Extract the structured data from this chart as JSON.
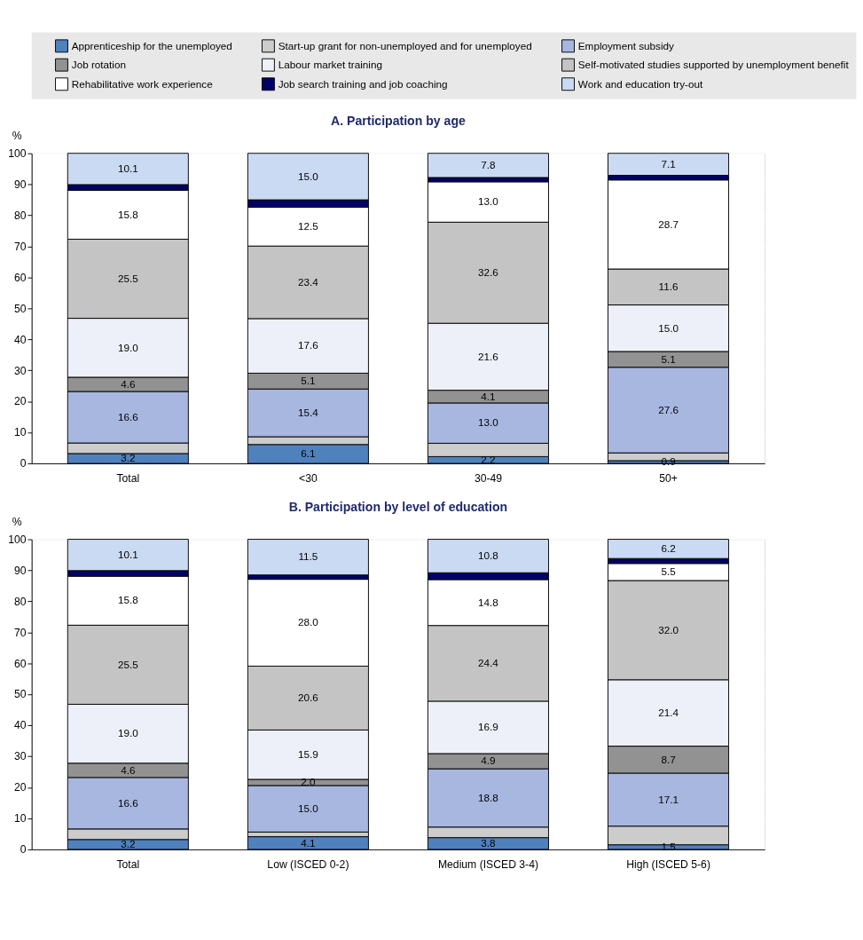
{
  "chart_data": [
    {
      "type": "bar",
      "title": "A. Participation by age",
      "ylabel": "%",
      "stacked": true,
      "legend": "top",
      "grid": "y",
      "ylim": [
        0,
        100
      ],
      "yticks": [
        0,
        10,
        20,
        30,
        40,
        50,
        60,
        70,
        80,
        90,
        100
      ],
      "categories": [
        "Total",
        "<30",
        "30-49",
        "50+"
      ],
      "series": [
        {
          "name": "Apprenticeship for the unemployed",
          "color": "#4f81bd",
          "values": [
            3.2,
            6.1,
            2.2,
            0.9
          ],
          "value_labels": [
            "3.2",
            "6.1",
            "2.2",
            "0.9"
          ]
        },
        {
          "name": "Start-up grant for non-unemployed and for unemployed",
          "color": "#cccccc",
          "values": [
            3.4,
            2.5,
            4.3,
            2.5
          ],
          "value_labels": [
            null,
            null,
            null,
            null
          ]
        },
        {
          "name": "Employment subsidy",
          "color": "#a7b7e0",
          "values": [
            16.6,
            15.4,
            13.0,
            27.6
          ],
          "value_labels": [
            "16.6",
            "15.4",
            "13.0",
            "27.6"
          ]
        },
        {
          "name": "Job rotation",
          "color": "#929292",
          "values": [
            4.6,
            5.1,
            4.1,
            5.1
          ],
          "value_labels": [
            "4.6",
            "5.1",
            "4.1",
            "5.1"
          ]
        },
        {
          "name": "Labour market training",
          "color": "#edf0f8",
          "values": [
            19.0,
            17.6,
            21.6,
            15.0
          ],
          "value_labels": [
            "19.0",
            "17.6",
            "21.6",
            "15.0"
          ]
        },
        {
          "name": "Self-motivated studies supported by unemployment benefit",
          "color": "#c4c4c4",
          "values": [
            25.5,
            23.4,
            32.6,
            11.6
          ],
          "value_labels": [
            "25.5",
            "23.4",
            "32.6",
            "11.6"
          ]
        },
        {
          "name": "Rehabilitative work experience",
          "color": "#ffffff",
          "values": [
            15.8,
            12.5,
            13.0,
            28.7
          ],
          "value_labels": [
            "15.8",
            "12.5",
            "13.0",
            "28.7"
          ]
        },
        {
          "name": "Job search training and job coaching",
          "color": "#000066",
          "values": [
            1.8,
            2.4,
            1.4,
            1.5
          ],
          "value_labels": [
            null,
            null,
            null,
            null
          ]
        },
        {
          "name": "Work and education try-out",
          "color": "#c9daf2",
          "values": [
            10.1,
            15.0,
            7.8,
            7.1
          ],
          "value_labels": [
            "10.1",
            "15.0",
            "7.8",
            "7.1"
          ]
        }
      ]
    },
    {
      "type": "bar",
      "title": "B. Participation by level of education",
      "ylabel": "%",
      "stacked": true,
      "grid": "y",
      "ylim": [
        0,
        100
      ],
      "yticks": [
        0,
        10,
        20,
        30,
        40,
        50,
        60,
        70,
        80,
        90,
        100
      ],
      "categories": [
        "Total",
        "Low (ISCED 0-2)",
        "Medium (ISCED 3-4)",
        "High (ISCED 5-6)"
      ],
      "series": [
        {
          "name": "Apprenticeship for the unemployed",
          "color": "#4f81bd",
          "values": [
            3.2,
            4.1,
            3.8,
            1.5
          ],
          "value_labels": [
            "3.2",
            "4.1",
            "3.8",
            "1.5"
          ]
        },
        {
          "name": "Start-up grant for non-unemployed and for unemployed",
          "color": "#cccccc",
          "values": [
            3.4,
            1.5,
            3.4,
            6.0
          ],
          "value_labels": [
            null,
            null,
            null,
            null
          ]
        },
        {
          "name": "Employment subsidy",
          "color": "#a7b7e0",
          "values": [
            16.6,
            15.0,
            18.8,
            17.1
          ],
          "value_labels": [
            "16.6",
            "15.0",
            "18.8",
            "17.1"
          ]
        },
        {
          "name": "Job rotation",
          "color": "#929292",
          "values": [
            4.6,
            2.0,
            4.9,
            8.7
          ],
          "value_labels": [
            "4.6",
            "2.0",
            "4.9",
            "8.7"
          ]
        },
        {
          "name": "Labour market training",
          "color": "#edf0f8",
          "values": [
            19.0,
            15.9,
            16.9,
            21.4
          ],
          "value_labels": [
            "19.0",
            "15.9",
            "16.9",
            "21.4"
          ]
        },
        {
          "name": "Self-motivated studies supported by unemployment benefit",
          "color": "#c4c4c4",
          "values": [
            25.5,
            20.6,
            24.4,
            32.0
          ],
          "value_labels": [
            "25.5",
            "20.6",
            "24.4",
            "32.0"
          ]
        },
        {
          "name": "Rehabilitative work experience",
          "color": "#ffffff",
          "values": [
            15.8,
            28.0,
            14.8,
            5.5
          ],
          "value_labels": [
            "15.8",
            "28.0",
            "14.8",
            "5.5"
          ]
        },
        {
          "name": "Job search training and job coaching",
          "color": "#000066",
          "values": [
            1.8,
            1.4,
            2.2,
            1.6
          ],
          "value_labels": [
            null,
            null,
            null,
            null
          ]
        },
        {
          "name": "Work and education try-out",
          "color": "#c9daf2",
          "values": [
            10.1,
            11.5,
            10.8,
            6.2
          ],
          "value_labels": [
            "10.1",
            "11.5",
            "10.8",
            "6.2"
          ]
        }
      ]
    }
  ]
}
